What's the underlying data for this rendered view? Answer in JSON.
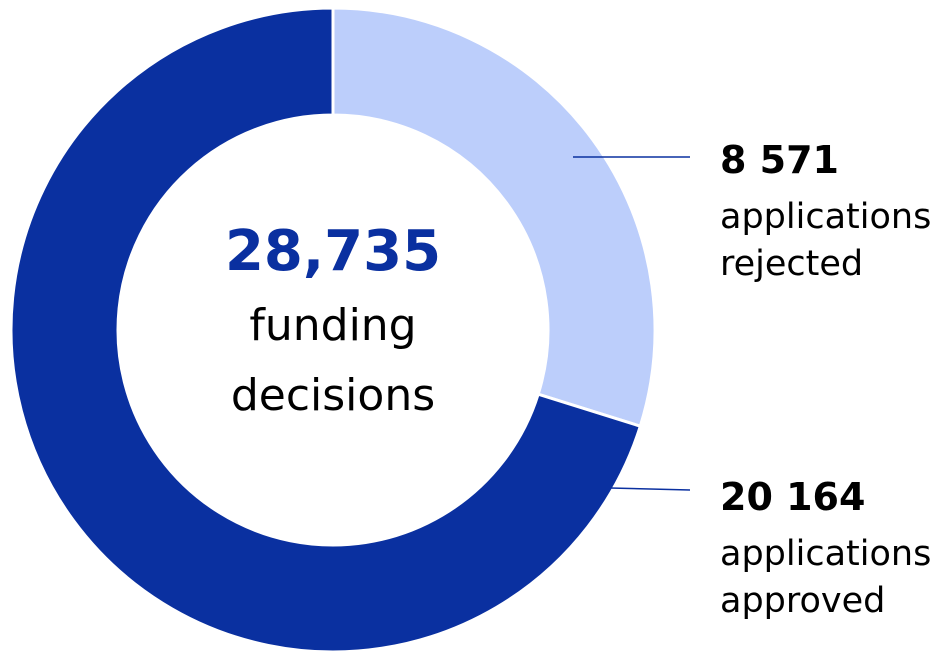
{
  "chart_data": {
    "type": "donut",
    "categories": [
      "applications rejected",
      "applications approved"
    ],
    "values": [
      8571,
      20164
    ],
    "value_labels": [
      "8 571",
      "20 164"
    ],
    "colors": [
      "#bccefb",
      "#0a30a0"
    ],
    "center_value": "28,735",
    "center_text": "funding decisions"
  }
}
